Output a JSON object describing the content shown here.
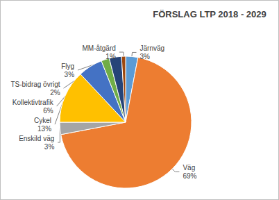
{
  "chart_data": {
    "type": "pie",
    "title": "FÖRSLAG LTP 2018 - 2029",
    "categories": [
      "Järnväg",
      "Väg",
      "Enskild väg",
      "Cykel",
      "Kollektivtrafik",
      "TS-bidrag övrigt",
      "Flyg",
      "MM-åtgärd"
    ],
    "values": [
      3,
      69,
      3,
      13,
      6,
      2,
      3,
      1
    ],
    "value_labels": [
      "3%",
      "69%",
      "3%",
      "13%",
      "6%",
      "2%",
      "3%",
      "1%"
    ],
    "colors": [
      "#5B9BD5",
      "#ED7D31",
      "#A5A5A5",
      "#FFC000",
      "#4472C4",
      "#70AD47",
      "#264478",
      "#9E480E"
    ],
    "data_labels": true
  }
}
